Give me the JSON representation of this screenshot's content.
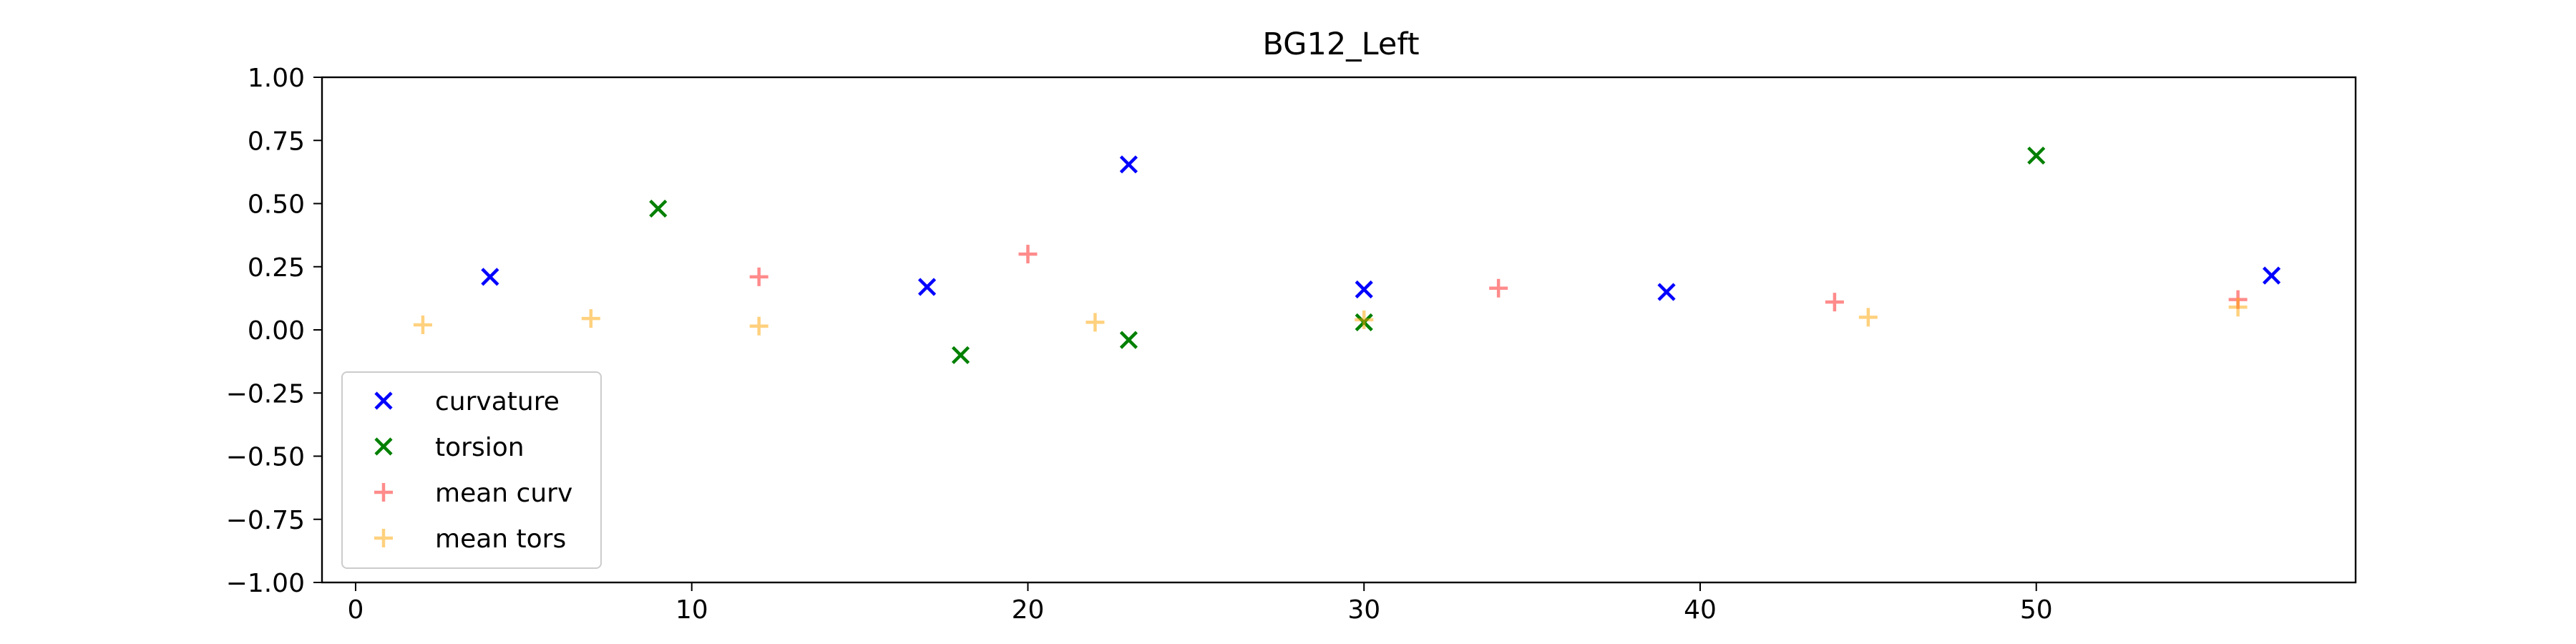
{
  "chart_data": {
    "type": "scatter",
    "title": "BG12_Left",
    "xlabel": "",
    "ylabel": "",
    "xlim": [
      -1,
      59.5
    ],
    "ylim": [
      -1.0,
      1.0
    ],
    "xticks": [
      0,
      10,
      20,
      30,
      40,
      50
    ],
    "yticks": [
      1.0,
      0.75,
      0.5,
      0.25,
      0.0,
      -0.25,
      -0.5,
      -0.75,
      -1.0
    ],
    "ytick_labels": [
      "1.00",
      "0.75",
      "0.50",
      "0.25",
      "0.00",
      "−0.25",
      "−0.50",
      "−0.75",
      "−1.00"
    ],
    "grid": false,
    "legend_position": "lower-left",
    "series": [
      {
        "name": "curvature",
        "marker": "x",
        "color": "#0000ff",
        "alpha": 1.0,
        "points": [
          [
            4,
            0.21
          ],
          [
            17,
            0.17
          ],
          [
            23,
            0.655
          ],
          [
            30,
            0.16
          ],
          [
            39,
            0.15
          ],
          [
            57,
            0.215
          ]
        ]
      },
      {
        "name": "torsion",
        "marker": "x",
        "color": "#008000",
        "alpha": 1.0,
        "points": [
          [
            9,
            0.48
          ],
          [
            18,
            -0.1
          ],
          [
            23,
            -0.04
          ],
          [
            30,
            0.03
          ],
          [
            50,
            0.69
          ]
        ]
      },
      {
        "name": "mean curv",
        "marker": "+",
        "color": "#ff0000",
        "alpha": 0.45,
        "points": [
          [
            12,
            0.21
          ],
          [
            20,
            0.3
          ],
          [
            34,
            0.165
          ],
          [
            44,
            0.11
          ],
          [
            56,
            0.12
          ]
        ]
      },
      {
        "name": "mean tors",
        "marker": "+",
        "color": "#ffa500",
        "alpha": 0.5,
        "points": [
          [
            2,
            0.02
          ],
          [
            7,
            0.045
          ],
          [
            12,
            0.015
          ],
          [
            22,
            0.03
          ],
          [
            30,
            0.04
          ],
          [
            45,
            0.05
          ],
          [
            56,
            0.09
          ]
        ]
      }
    ]
  }
}
